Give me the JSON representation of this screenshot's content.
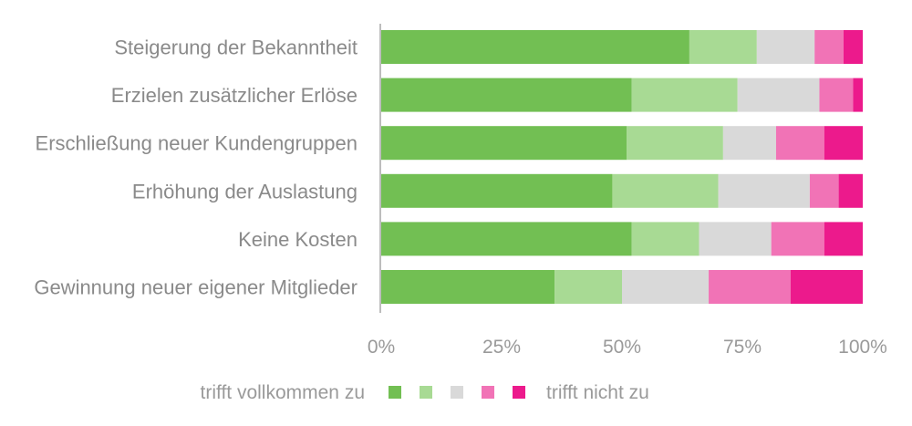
{
  "chart_data": {
    "type": "bar",
    "orientation": "horizontal",
    "stacked": true,
    "categories": [
      "Steigerung der Bekanntheit",
      "Erzielen zusätzlicher Erlöse",
      "Erschließung neuer Kundengruppen",
      "Erhöhung der Auslastung",
      "Keine Kosten",
      "Gewinnung neuer eigener Mitglieder"
    ],
    "series": [
      {
        "color": "#72bf53",
        "values": [
          64,
          52,
          51,
          48,
          52,
          36
        ]
      },
      {
        "color": "#a8da94",
        "values": [
          14,
          22,
          20,
          22,
          14,
          14
        ]
      },
      {
        "color": "#d9d9d9",
        "values": [
          12,
          17,
          11,
          19,
          15,
          18
        ]
      },
      {
        "color": "#f173b6",
        "values": [
          6,
          7,
          10,
          6,
          11,
          17
        ]
      },
      {
        "color": "#ec1a8c",
        "values": [
          4,
          2,
          8,
          5,
          8,
          15
        ]
      }
    ],
    "xlim": [
      0,
      100
    ],
    "x_ticks": [
      "0%",
      "25%",
      "50%",
      "75%",
      "100%"
    ],
    "legend": {
      "placement": "bottom",
      "left_label": "trifft vollkommen zu",
      "right_label": "trifft nicht zu"
    },
    "grid": false
  }
}
